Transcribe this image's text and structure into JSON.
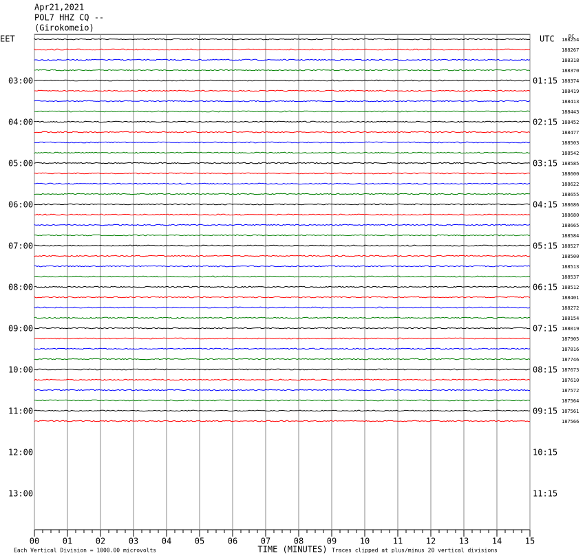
{
  "chart_data": {
    "type": "helicorder",
    "header": [
      "Apr21,2021",
      "POL7 HHZ CQ --",
      "(Girokomeio)"
    ],
    "left_zone": "EET",
    "right_zone": "UTC",
    "dc_label": "DC",
    "left_hours": [
      "03:00",
      "04:00",
      "05:00",
      "06:00",
      "07:00",
      "08:00",
      "09:00",
      "10:00",
      "11:00",
      "12:00",
      "13:00"
    ],
    "right_hours": [
      "01:15",
      "02:15",
      "03:15",
      "04:15",
      "05:15",
      "06:15",
      "07:15",
      "08:15",
      "09:15",
      "10:15",
      "11:15"
    ],
    "trace_offsets": [
      188254,
      188267,
      188318,
      188370,
      188374,
      188419,
      188413,
      188443,
      188452,
      188477,
      188503,
      188542,
      188585,
      188600,
      188622,
      188655,
      188686,
      188680,
      188665,
      188584,
      188527,
      188500,
      188513,
      188537,
      188512,
      188401,
      188272,
      188154,
      188019,
      187905,
      187816,
      187746,
      187673,
      187610,
      187572,
      187564,
      187561,
      187566
    ],
    "colors": [
      "#000000",
      "#ff0000",
      "#0000ff",
      "#007f00"
    ],
    "xlim": [
      0,
      15
    ],
    "xticks": [
      {
        "value": 0,
        "label": "00"
      },
      {
        "value": 1,
        "label": "01"
      },
      {
        "value": 2,
        "label": "02"
      },
      {
        "value": 3,
        "label": "03"
      },
      {
        "value": 4,
        "label": "04"
      },
      {
        "value": 5,
        "label": "05"
      },
      {
        "value": 6,
        "label": "06"
      },
      {
        "value": 7,
        "label": "07"
      },
      {
        "value": 8,
        "label": "08"
      },
      {
        "value": 9,
        "label": "09"
      },
      {
        "value": 10,
        "label": "10"
      },
      {
        "value": 11,
        "label": "11"
      },
      {
        "value": 12,
        "label": "12"
      },
      {
        "value": 13,
        "label": "13"
      },
      {
        "value": 14,
        "label": "14"
      },
      {
        "value": 15,
        "label": "15"
      }
    ],
    "xlabel": "TIME (MINUTES)",
    "scale_note": "Each Vertical Division = 1000.00 microvolts",
    "clip_note": "Traces clipped at plus/minus 20 vertical divisions",
    "grid": true
  }
}
